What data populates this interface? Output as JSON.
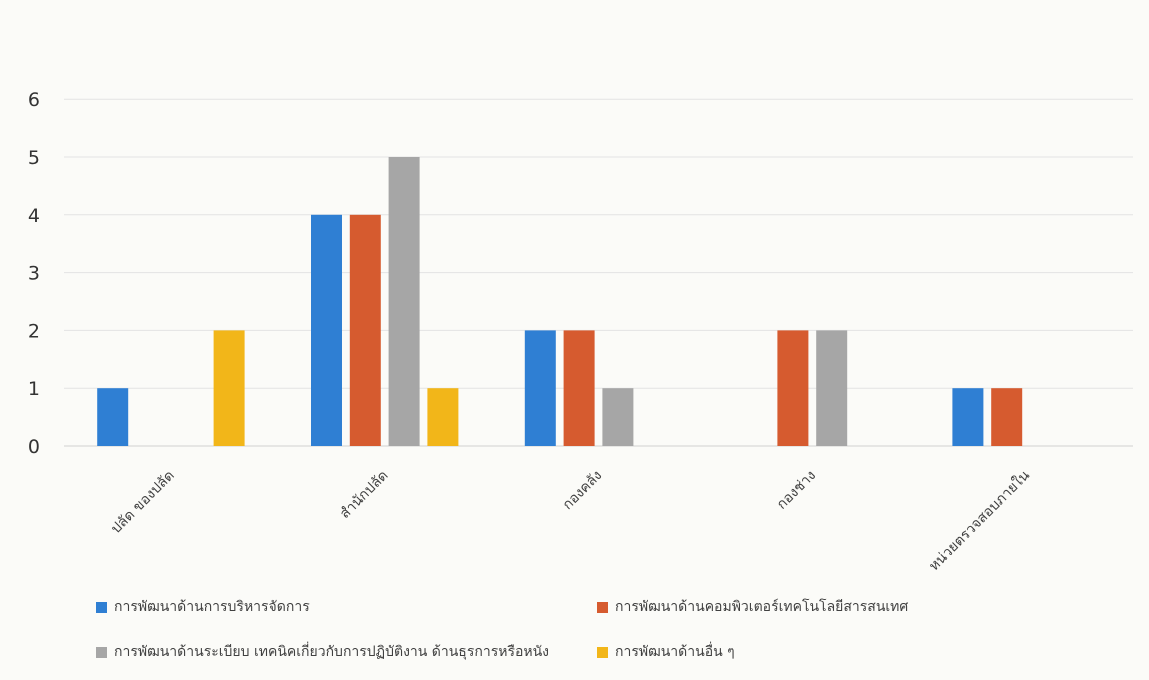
{
  "chart_data": {
    "type": "bar",
    "categories": [
      "ปลัด ของปลัด",
      "สำนักปลัด",
      "กองคลัง",
      "กองช่าง",
      "หน่วยตรวจสอบภายใน"
    ],
    "series": [
      {
        "name": "การพัฒนาด้านการบริหารจัดการ",
        "color": "#2f7fd3",
        "values": [
          1,
          4,
          2,
          0,
          1
        ]
      },
      {
        "name": "การพัฒนาด้านคอมพิวเตอร์เทคโนโลยีสารสนเทศ",
        "color": "#d65b2f",
        "values": [
          0,
          4,
          2,
          2,
          1
        ]
      },
      {
        "name": "การพัฒนาด้านระเบียบ เทคนิคเกี่ยวกับการปฏิบัติงาน ด้านธุรการหรือหนัง",
        "color": "#a6a6a6",
        "values": [
          0,
          5,
          1,
          2,
          0
        ]
      },
      {
        "name": "การพัฒนาด้านอื่น ๆ",
        "color": "#f2b619",
        "values": [
          2,
          1,
          0,
          0,
          0
        ]
      }
    ],
    "yticks": [
      "0",
      "1",
      "2",
      "3",
      "4",
      "5",
      "6"
    ],
    "ylim": [
      0,
      6
    ],
    "grid": true,
    "legend_position": "bottom"
  }
}
